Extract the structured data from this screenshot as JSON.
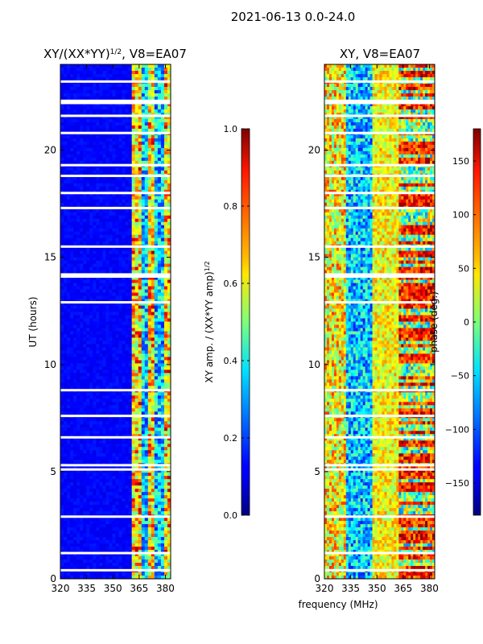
{
  "figure_title": "2021-06-13 0.0-24.0",
  "chart_data": [
    {
      "type": "heatmap",
      "title_main": "XY/(XX*YY)",
      "title_sup": "1/2",
      "title_suffix": ", V8=EA07",
      "xlabel": "",
      "ylabel": "UT (hours)",
      "xlim": [
        320,
        383
      ],
      "ylim": [
        0,
        24
      ],
      "xticks": [
        320,
        335,
        350,
        365,
        380
      ],
      "yticks": [
        0,
        5,
        10,
        15,
        20
      ],
      "colorbar": {
        "label_main": "XY amp. / (XX*YY amp)",
        "label_sup": "1/2",
        "range": [
          0.0,
          1.0
        ],
        "ticks": [
          "0.0",
          "0.2",
          "0.4",
          "0.6",
          "0.8",
          "1.0"
        ]
      },
      "colormap": "jet",
      "description_bands": "low amplitude 320-361 MHz; high amplitude bands 361-383 MHz",
      "gap_rows_hours": [
        0.4,
        1.2,
        2.9,
        5.1,
        5.3,
        6.6,
        7.6,
        8.8,
        12.9,
        14.1,
        14.2,
        15.5,
        17.3,
        18.0,
        18.8,
        19.3,
        20.8,
        21.6,
        22.2,
        22.3,
        23.2
      ]
    },
    {
      "type": "heatmap",
      "title": "XY, V8=EA07",
      "xlabel": "frequency (MHz)",
      "ylabel": "",
      "xlim": [
        320,
        383
      ],
      "ylim": [
        0,
        24
      ],
      "xticks": [
        320,
        335,
        350,
        365,
        380
      ],
      "yticks": [
        0,
        5,
        10,
        15,
        20
      ],
      "colorbar": {
        "label": "phase (deg.)",
        "range": [
          -180,
          180
        ],
        "ticks": [
          "−150",
          "−100",
          "−50",
          "0",
          "50",
          "100",
          "150"
        ]
      },
      "colormap": "jet",
      "gap_rows_hours": [
        0.4,
        1.2,
        2.9,
        5.1,
        5.3,
        6.6,
        7.6,
        8.8,
        12.9,
        14.1,
        14.2,
        15.5,
        17.3,
        18.0,
        18.8,
        19.3,
        20.8,
        21.6,
        22.2,
        22.3,
        23.2
      ]
    }
  ]
}
